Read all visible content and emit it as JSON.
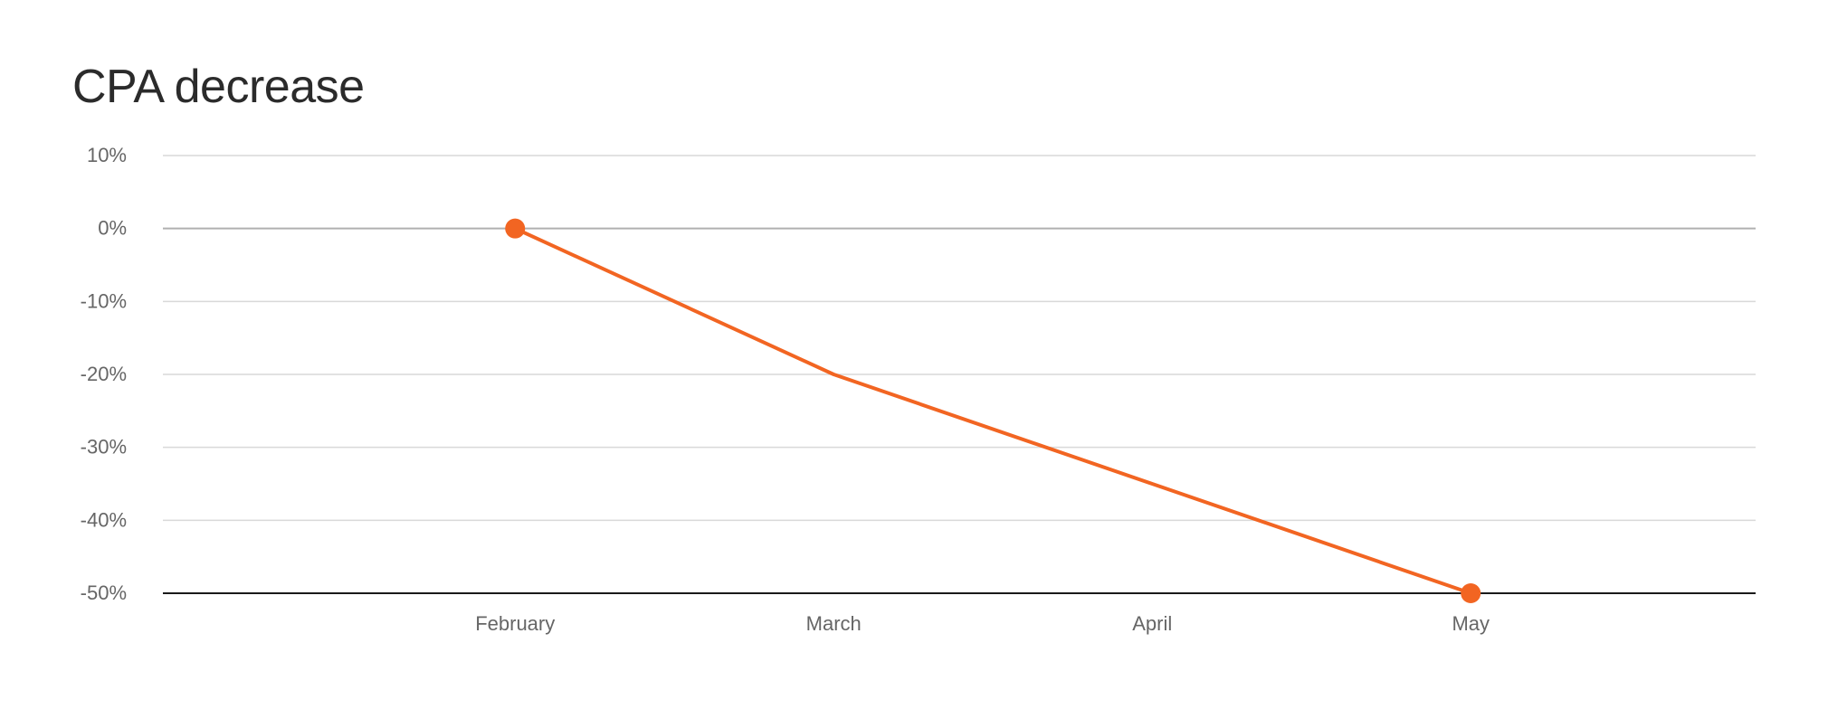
{
  "chart_data": {
    "type": "line",
    "title": "CPA decrease",
    "xlabel": "",
    "ylabel": "",
    "categories": [
      "February",
      "March",
      "April",
      "May"
    ],
    "series": [
      {
        "values": [
          0,
          -20,
          -35,
          -50
        ],
        "color": "#f26522",
        "markers": [
          "February",
          "May"
        ]
      }
    ],
    "ylim": [
      -50,
      10
    ],
    "yticks": [
      10,
      0,
      -10,
      -20,
      -30,
      -40,
      -50
    ],
    "ytick_labels": [
      "10%",
      "0%",
      "-10%",
      "-20%",
      "-30%",
      "-40%",
      "-50%"
    ],
    "grid": true,
    "colors": {
      "line": "#f26522",
      "grid": "#d9d9d9",
      "zero_line": "#b0b0b0",
      "baseline": "#1a1a1a",
      "text": "#666666",
      "title": "#2b2b2b"
    }
  }
}
